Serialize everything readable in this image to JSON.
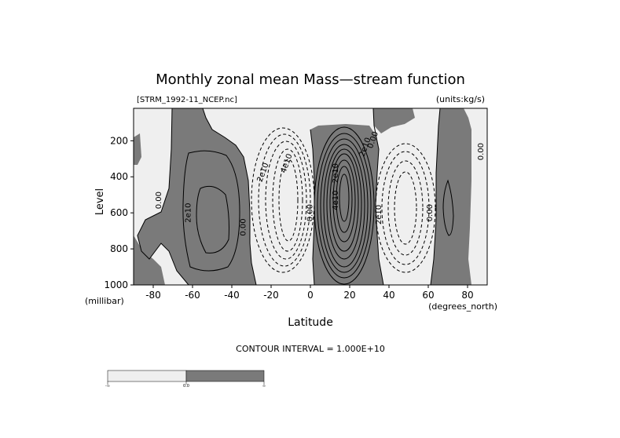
{
  "chart_data": {
    "type": "contour",
    "title": "Monthly zonal mean Mass—stream function",
    "file_label": "[STRM_1992-11_NCEP.nc]",
    "units_label": "(units:kg/s)",
    "xlabel": "Latitude",
    "x_units": "(degrees_north)",
    "ylabel": "Level",
    "y_units": "(millibar)",
    "xlim": [
      -90,
      90
    ],
    "ylim": [
      1000,
      20
    ],
    "x_ticks": [
      -80,
      -60,
      -40,
      -20,
      0,
      20,
      40,
      60,
      80
    ],
    "y_ticks": [
      200,
      400,
      600,
      800,
      1000
    ],
    "contour_interval_text": "CONTOUR INTERVAL = 1.000E+10",
    "contour_labels": [
      "0.00",
      "2e10",
      "0.00",
      "2e10",
      "4e10",
      "0.00",
      "2e10",
      "4e10",
      "2e10",
      "0.00",
      "2e10",
      "0.00",
      "0.00"
    ],
    "colorbar": {
      "labels": [
        "-∞",
        "0.0",
        "∞"
      ],
      "colors": [
        "#efefef",
        "#7a7a7a"
      ]
    },
    "colors": {
      "positive_fill": "#7a7a7a",
      "negative_fill": "#efefef"
    }
  }
}
